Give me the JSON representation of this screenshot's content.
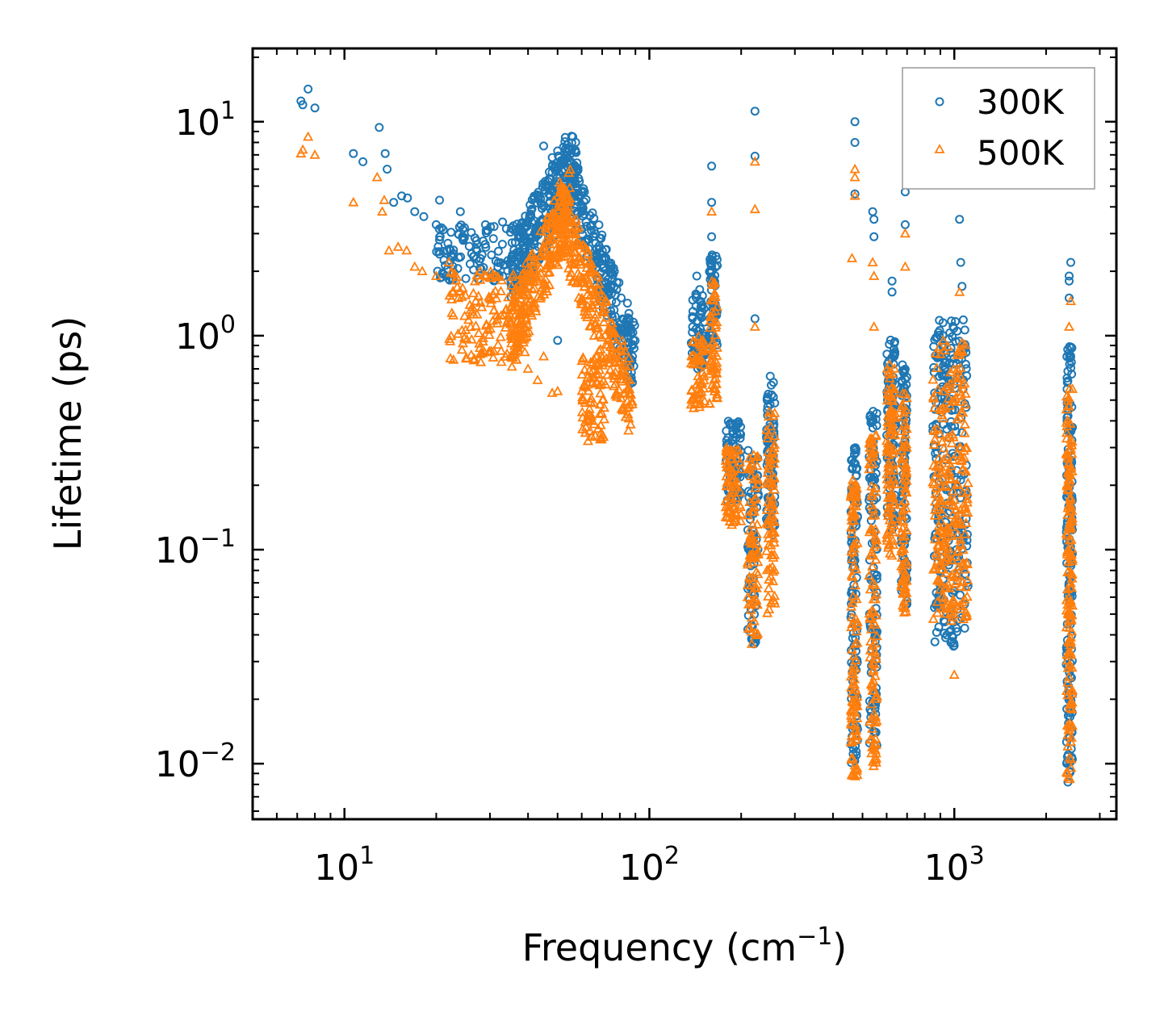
{
  "chart_data": {
    "type": "scatter",
    "title": "",
    "xlabel": "Frequency (cm",
    "xlabel_exp": "−1",
    "xlabel_end": ")",
    "ylabel": "Lifetime (ps)",
    "xscale": "log",
    "yscale": "log",
    "xlim": [
      5,
      3400
    ],
    "ylim": [
      0.0055,
      22
    ],
    "x_ticks": [
      {
        "value": 10,
        "base": "10",
        "exp": "1"
      },
      {
        "value": 100,
        "base": "10",
        "exp": "2"
      },
      {
        "value": 1000,
        "base": "10",
        "exp": "3"
      }
    ],
    "y_ticks": [
      {
        "value": 10,
        "base": "10",
        "exp": "1"
      },
      {
        "value": 1,
        "base": "10",
        "exp": "0"
      },
      {
        "value": 0.1,
        "base": "10",
        "exp": "−1"
      },
      {
        "value": 0.01,
        "base": "10",
        "exp": "−2"
      }
    ],
    "legend_position": "top-right",
    "series": [
      {
        "name": "300K",
        "marker": "circle",
        "color": "#1f77b4",
        "points": [
          [
            7.2,
            12.5
          ],
          [
            7.6,
            14.2
          ],
          [
            7.3,
            12.0
          ],
          [
            8.0,
            11.6
          ],
          [
            10.7,
            7.1
          ],
          [
            11.5,
            6.5
          ],
          [
            13.0,
            9.4
          ],
          [
            13.6,
            7.1
          ],
          [
            13.8,
            6.0
          ],
          [
            14.5,
            4.2
          ],
          [
            15.4,
            4.5
          ],
          [
            16.1,
            4.4
          ],
          [
            17.0,
            3.8
          ],
          [
            18.2,
            3.6
          ],
          [
            20.0,
            3.3
          ],
          [
            20.5,
            4.3
          ],
          [
            24.0,
            3.8
          ],
          [
            29.0,
            3.3
          ],
          [
            33.0,
            3.4
          ],
          [
            45.0,
            7.7
          ],
          [
            48.0,
            6.8
          ],
          [
            50.0,
            7.3
          ],
          [
            52.0,
            6.5
          ],
          [
            60.0,
            3.8
          ],
          [
            62.0,
            3.4
          ],
          [
            78.0,
            1.1
          ],
          [
            85.0,
            0.9
          ],
          [
            88.0,
            0.8
          ],
          [
            50.0,
            0.95
          ],
          [
            143.0,
            1.9
          ],
          [
            160.0,
            6.2
          ],
          [
            160.0,
            4.2
          ],
          [
            160.0,
            2.9
          ],
          [
            222.0,
            11.2
          ],
          [
            222.0,
            6.9
          ],
          [
            222.0,
            1.2
          ],
          [
            472.0,
            10.0
          ],
          [
            472.0,
            8.0
          ],
          [
            472.0,
            4.6
          ],
          [
            540.0,
            3.8
          ],
          [
            545.0,
            3.5
          ],
          [
            545.0,
            2.9
          ],
          [
            690.0,
            4.7
          ],
          [
            690.0,
            3.3
          ],
          [
            625.0,
            1.8
          ],
          [
            625.0,
            1.6
          ],
          [
            1040.0,
            3.5
          ],
          [
            1050.0,
            2.2
          ],
          [
            1060.0,
            1.7
          ],
          [
            2410.0,
            2.2
          ],
          [
            2380.0,
            1.9
          ],
          [
            2380.0,
            1.8
          ],
          [
            2380.0,
            1.5
          ]
        ],
        "clusters": [
          {
            "x": [
              35,
              58
            ],
            "y_shape": "rise",
            "y": [
              2.0,
              6.5
            ],
            "n": 260
          },
          {
            "x": [
              52,
              90
            ],
            "y_shape": "fall",
            "y": [
              6.5,
              0.75
            ],
            "n": 260
          },
          {
            "x": [
              20,
              40
            ],
            "y_shape": "band",
            "y": [
              1.8,
              3.3
            ],
            "n": 140
          },
          {
            "x": [
              137,
              152
            ],
            "y_shape": "band",
            "y": [
              0.7,
              1.7
            ],
            "n": 60
          },
          {
            "x": [
              157,
              167
            ],
            "y_shape": "band",
            "y": [
              0.9,
              2.6
            ],
            "n": 60
          },
          {
            "x": [
              178,
              200
            ],
            "y_shape": "band",
            "y": [
              0.17,
              0.4
            ],
            "n": 80
          },
          {
            "x": [
              210,
              228
            ],
            "y_shape": "band",
            "y": [
              0.035,
              0.3
            ],
            "n": 80
          },
          {
            "x": [
              242,
              258
            ],
            "y_shape": "band",
            "y": [
              0.11,
              0.65
            ],
            "n": 80
          },
          {
            "x": [
              458,
              482
            ],
            "y_shape": "band",
            "y": [
              0.01,
              0.3
            ],
            "n": 110
          },
          {
            "x": [
              525,
              558
            ],
            "y_shape": "band",
            "y": [
              0.012,
              0.45
            ],
            "n": 110
          },
          {
            "x": [
              600,
              640
            ],
            "y_shape": "band",
            "y": [
              0.12,
              1.0
            ],
            "n": 100
          },
          {
            "x": [
              670,
              700
            ],
            "y_shape": "band",
            "y": [
              0.055,
              0.75
            ],
            "n": 90
          },
          {
            "x": [
              850,
              1110
            ],
            "y_shape": "band",
            "y": [
              0.035,
              1.2
            ],
            "n": 260
          },
          {
            "x": [
              2330,
              2440
            ],
            "y_shape": "band",
            "y": [
              0.008,
              0.9
            ],
            "n": 160
          }
        ]
      },
      {
        "name": "500K",
        "marker": "triangle",
        "color": "#ff7f0e",
        "points": [
          [
            7.2,
            7.1
          ],
          [
            7.3,
            7.4
          ],
          [
            7.6,
            8.5
          ],
          [
            8.0,
            7.0
          ],
          [
            10.7,
            4.2
          ],
          [
            12.8,
            5.5
          ],
          [
            13.5,
            4.3
          ],
          [
            13.3,
            3.8
          ],
          [
            14.0,
            2.5
          ],
          [
            15.0,
            2.6
          ],
          [
            16.0,
            2.5
          ],
          [
            17.0,
            2.1
          ],
          [
            18.0,
            2.0
          ],
          [
            20.0,
            1.9
          ],
          [
            22.0,
            2.2
          ],
          [
            45.0,
            0.8
          ],
          [
            43.0,
            0.62
          ],
          [
            40.0,
            0.7
          ],
          [
            48.0,
            0.54
          ],
          [
            50.0,
            0.55
          ],
          [
            160.0,
            3.8
          ],
          [
            222.0,
            6.5
          ],
          [
            222.0,
            3.9
          ],
          [
            222.0,
            1.1
          ],
          [
            472.0,
            6.0
          ],
          [
            472.0,
            5.5
          ],
          [
            472.0,
            4.5
          ],
          [
            462.0,
            2.3
          ],
          [
            540.0,
            2.2
          ],
          [
            545.0,
            1.9
          ],
          [
            545.0,
            1.1
          ],
          [
            690.0,
            3.0
          ],
          [
            690.0,
            2.1
          ],
          [
            1040.0,
            1.6
          ],
          [
            1000.0,
            0.026
          ],
          [
            2410.0,
            1.45
          ],
          [
            2380.0,
            1.1
          ]
        ],
        "clusters": [
          {
            "x": [
              35,
              55
            ],
            "y_shape": "rise",
            "y": [
              1.0,
              4.2
            ],
            "n": 260
          },
          {
            "x": [
              50,
              88
            ],
            "y_shape": "fall",
            "y": [
              4.0,
              0.48
            ],
            "n": 260
          },
          {
            "x": [
              22,
              40
            ],
            "y_shape": "band",
            "y": [
              0.75,
              2.0
            ],
            "n": 150
          },
          {
            "x": [
              60,
              72
            ],
            "y_shape": "band",
            "y": [
              0.32,
              0.8
            ],
            "n": 80
          },
          {
            "x": [
              137,
              152
            ],
            "y_shape": "band",
            "y": [
              0.45,
              1.0
            ],
            "n": 60
          },
          {
            "x": [
              157,
              167
            ],
            "y_shape": "band",
            "y": [
              0.48,
              1.8
            ],
            "n": 60
          },
          {
            "x": [
              178,
              200
            ],
            "y_shape": "band",
            "y": [
              0.13,
              0.3
            ],
            "n": 80
          },
          {
            "x": [
              210,
              228
            ],
            "y_shape": "band",
            "y": [
              0.035,
              0.28
            ],
            "n": 80
          },
          {
            "x": [
              242,
              258
            ],
            "y_shape": "band",
            "y": [
              0.05,
              0.45
            ],
            "n": 80
          },
          {
            "x": [
              458,
              482
            ],
            "y_shape": "band",
            "y": [
              0.0085,
              0.22
            ],
            "n": 110
          },
          {
            "x": [
              525,
              558
            ],
            "y_shape": "band",
            "y": [
              0.0095,
              0.35
            ],
            "n": 110
          },
          {
            "x": [
              600,
              640
            ],
            "y_shape": "band",
            "y": [
              0.09,
              0.75
            ],
            "n": 100
          },
          {
            "x": [
              670,
              700
            ],
            "y_shape": "band",
            "y": [
              0.05,
              0.55
            ],
            "n": 90
          },
          {
            "x": [
              850,
              1110
            ],
            "y_shape": "band",
            "y": [
              0.045,
              0.95
            ],
            "n": 260
          },
          {
            "x": [
              2330,
              2440
            ],
            "y_shape": "band",
            "y": [
              0.008,
              0.6
            ],
            "n": 160
          }
        ]
      }
    ]
  }
}
